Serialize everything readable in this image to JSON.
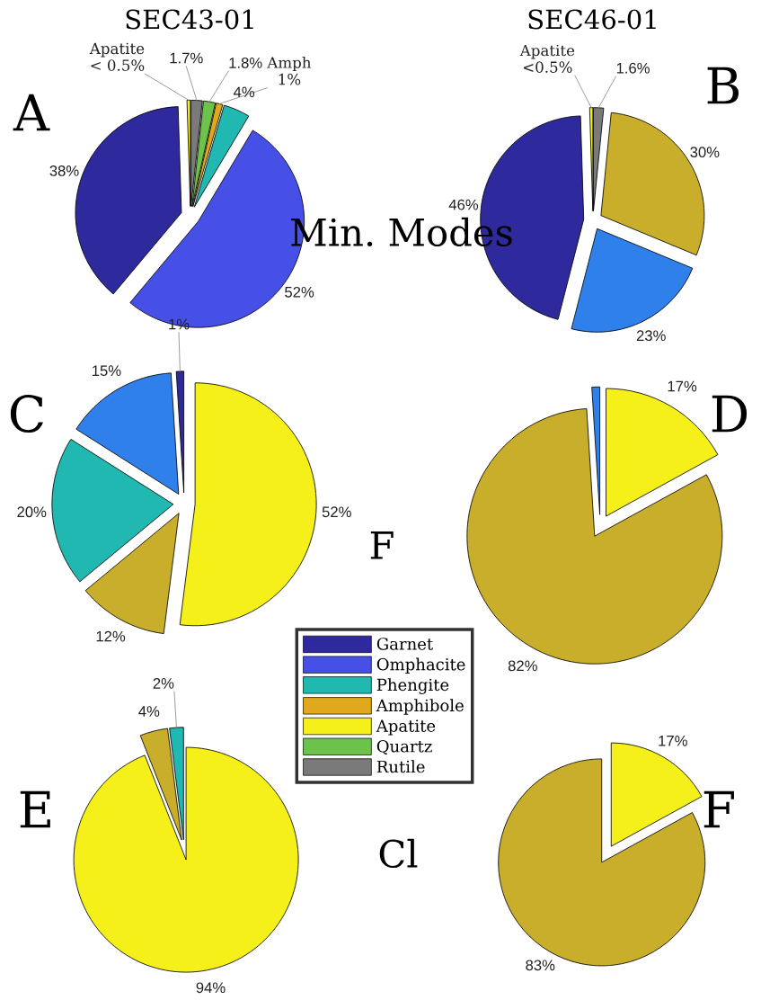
{
  "chart_data": [
    {
      "type": "pie",
      "title": "SEC43-01",
      "annotations": [
        "A",
        "Min. Modes"
      ],
      "categories": [
        "Rutile",
        "Quartz",
        "Amphibole",
        "Phengite",
        "Omphacite",
        "Garnet",
        "Apatite"
      ],
      "values": [
        1.7,
        1.8,
        1,
        4,
        52,
        38,
        0.5
      ],
      "colors": [
        "#7a7a7a",
        "#6cc24a",
        "#e0a81c",
        "#22b8b2",
        "#4750e6",
        "#2e2a9e",
        "#f5f01a"
      ],
      "value_labels": [
        "1.7%",
        "1.8%",
        "Amph\n1%",
        "4%",
        "52%",
        "38%",
        "Apatite\n< 0.5%"
      ],
      "legend": "bottom right"
    },
    {
      "type": "pie",
      "title": "SEC46-01",
      "annotations": [
        "B"
      ],
      "categories": [
        null,
        null,
        null,
        null,
        null
      ],
      "values": [
        1.6,
        30,
        23,
        46,
        0.5
      ],
      "colors": [
        "#7a7a7a",
        "#c8ae2a",
        "#2f80ea",
        "#2e2a9e",
        "#f5f01a"
      ],
      "value_labels": [
        "1.6%",
        "30%",
        "23%",
        "46%",
        "Apatite\n<0.5%"
      ]
    },
    {
      "type": "pie",
      "annotations": [
        "C",
        "F"
      ],
      "categories": [
        null,
        null,
        null,
        null,
        null
      ],
      "values": [
        52,
        12,
        20,
        15,
        1
      ],
      "colors": [
        "#f5f01a",
        "#c8ae2a",
        "#22b8b2",
        "#2f80ea",
        "#2e2a9e"
      ],
      "value_labels": [
        "52%",
        "12%",
        "20%",
        "15%",
        "1%"
      ]
    },
    {
      "type": "pie",
      "annotations": [
        "D"
      ],
      "categories": [
        null,
        null,
        null
      ],
      "values": [
        17,
        82,
        1
      ],
      "colors": [
        "#f5f01a",
        "#c8ae2a",
        "#2f80ea"
      ],
      "value_labels": [
        "17%",
        "82%",
        null
      ]
    },
    {
      "type": "pie",
      "annotations": [
        "E",
        "Cl"
      ],
      "categories": [
        null,
        null,
        null
      ],
      "values": [
        94,
        4,
        2
      ],
      "colors": [
        "#f5f01a",
        "#c8ae2a",
        "#22b8b2"
      ],
      "value_labels": [
        "94%",
        "4%",
        "2%"
      ]
    },
    {
      "type": "pie",
      "annotations": [
        "F"
      ],
      "categories": [
        null,
        null
      ],
      "values": [
        17,
        83
      ],
      "colors": [
        "#f5f01a",
        "#c8ae2a"
      ],
      "value_labels": [
        "17%",
        "83%"
      ]
    }
  ]
}
